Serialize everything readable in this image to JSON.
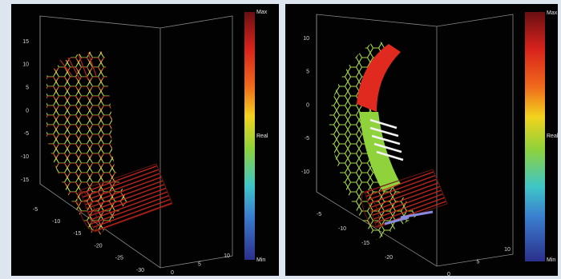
{
  "panels": [
    {
      "vertical_ticks": [
        "15",
        "10",
        "5",
        "0",
        "-5",
        "-10",
        "-15"
      ],
      "depth_ticks": [
        "-5",
        "-10",
        "-15",
        "-20",
        "-25",
        "-30"
      ],
      "x_ticks": [
        "0",
        "5",
        "10"
      ],
      "colorbar": {
        "max": "Max",
        "mid": "Real",
        "min": "Min"
      }
    },
    {
      "vertical_ticks": [
        "10",
        "5",
        "0",
        "-5",
        "-10"
      ],
      "depth_ticks": [
        "-5",
        "-10",
        "-15",
        "-20"
      ],
      "x_ticks": [
        "0",
        "5",
        "10"
      ],
      "colorbar": {
        "max": "Max",
        "mid": "Real",
        "min": "Min"
      }
    }
  ]
}
